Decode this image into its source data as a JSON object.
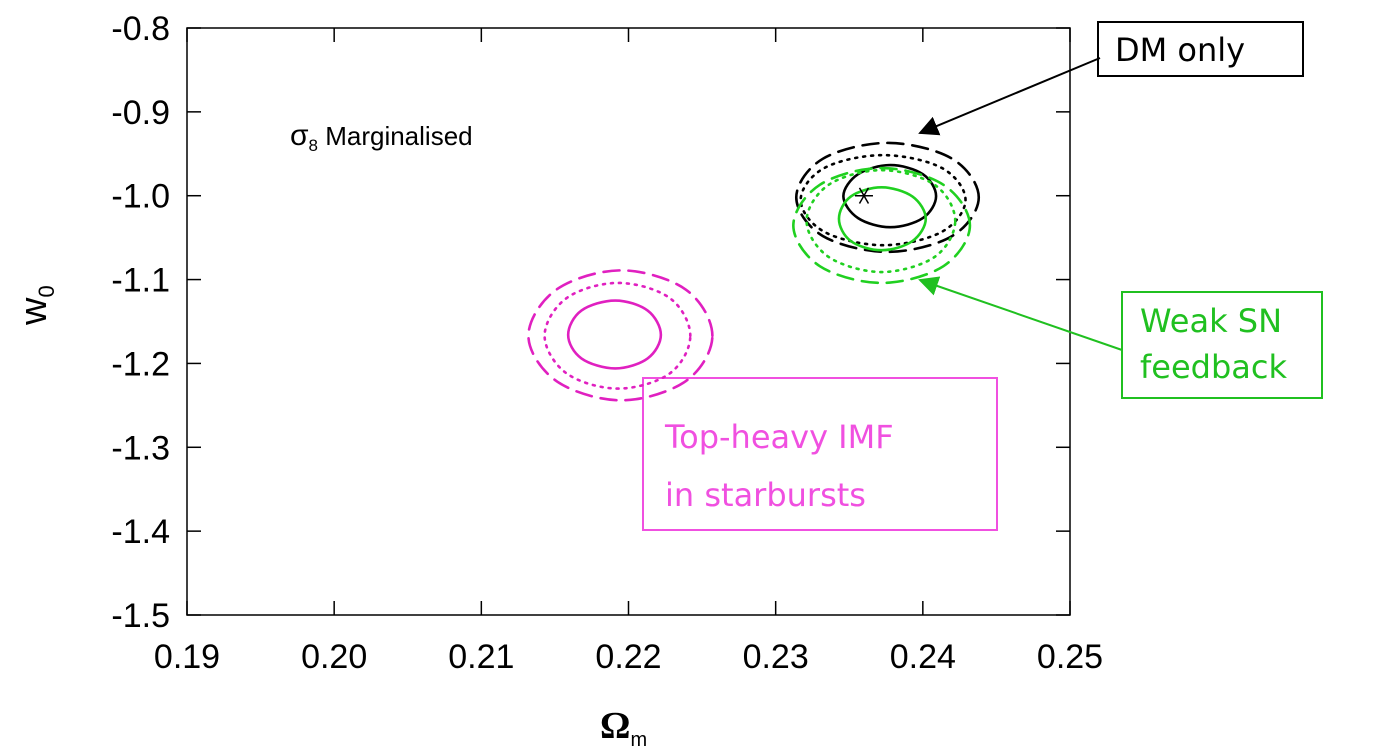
{
  "chart_data": {
    "type": "contour",
    "xlabel": "Ω",
    "xlabel_sub": "m",
    "ylabel": "w",
    "ylabel_sub": "0",
    "xlim": [
      0.19,
      0.25
    ],
    "xticks": [
      0.19,
      {
        "value": 0.2,
        "label": "0.20"
      },
      0.21,
      0.22,
      0.23,
      0.24,
      0.25
    ],
    "ylim": [
      -1.5,
      -0.8
    ],
    "yticks": [
      -0.8,
      -0.9,
      {
        "value": -1,
        "label": "-1.0"
      },
      -1.1,
      -1.2,
      -1.3,
      -1.4,
      -1.5
    ],
    "contours": [
      {
        "color": "#e020c0",
        "dash": "solid",
        "x": [
          0.2222,
          0.2213,
          0.2191,
          0.2168,
          0.2159,
          0.2168,
          0.2191,
          0.2213
        ],
        "y": [
          -1.166,
          -1.137,
          -1.125,
          -1.137,
          -1.166,
          -1.194,
          -1.206,
          -1.194
        ]
      },
      {
        "color": "#e020c0",
        "dash": "dotted",
        "x": [
          0.2242,
          0.2228,
          0.2193,
          0.2158,
          0.2143,
          0.2158,
          0.2193,
          0.2228
        ],
        "y": [
          -1.167,
          -1.122,
          -1.104,
          -1.122,
          -1.167,
          -1.212,
          -1.23,
          -1.212
        ]
      },
      {
        "color": "#e020c0",
        "dash": "dashed",
        "x": [
          0.2257,
          0.2239,
          0.2195,
          0.2151,
          0.2132,
          0.2151,
          0.2195,
          0.2239
        ],
        "y": [
          -1.167,
          -1.112,
          -1.089,
          -1.112,
          -1.167,
          -1.221,
          -1.244,
          -1.221
        ]
      },
      {
        "color": "#000000",
        "dash": "solid",
        "x": [
          0.2409,
          0.24,
          0.2378,
          0.2356,
          0.2346,
          0.2356,
          0.2378,
          0.24
        ],
        "y": [
          -1.0005,
          -0.9743,
          -0.9635,
          -0.9743,
          -1.0005,
          -1.0267,
          -1.0375,
          -1.0267
        ]
      },
      {
        "color": "#000000",
        "dash": "dotted",
        "x": [
          0.2429,
          0.2413,
          0.2373,
          0.2333,
          0.2317,
          0.2333,
          0.2373,
          0.2413
        ],
        "y": [
          -1.005,
          -0.967,
          -0.9516,
          -0.967,
          -1.005,
          -1.043,
          -1.059,
          -1.043
        ]
      },
      {
        "color": "#000000",
        "dash": "dashed",
        "x": [
          0.2438,
          0.242,
          0.2376,
          0.2332,
          0.2314,
          0.2332,
          0.2376,
          0.242
        ],
        "y": [
          -1.002,
          -0.956,
          -0.937,
          -0.956,
          -1.002,
          -1.048,
          -1.067,
          -1.048
        ]
      },
      {
        "color": "#20d020",
        "dash": "solid",
        "x": [
          0.2402,
          0.2393,
          0.2372,
          0.2351,
          0.2343,
          0.2351,
          0.2372,
          0.2393
        ],
        "y": [
          -1.0275,
          -1.001,
          -0.99,
          -1.001,
          -1.0275,
          -1.054,
          -1.065,
          -1.054
        ]
      },
      {
        "color": "#20d020",
        "dash": "dotted",
        "x": [
          0.2422,
          0.2408,
          0.2372,
          0.2336,
          0.2321,
          0.2336,
          0.2372,
          0.2408
        ],
        "y": [
          -1.03,
          -0.987,
          -0.9695,
          -0.987,
          -1.03,
          -1.073,
          -1.091,
          -1.073
        ]
      },
      {
        "color": "#20d020",
        "dash": "dashed",
        "x": [
          0.2432,
          0.2414,
          0.2372,
          0.233,
          0.2312,
          0.233,
          0.2372,
          0.2414
        ],
        "y": [
          -1.0355,
          -0.987,
          -0.967,
          -0.987,
          -1.0355,
          -1.084,
          -1.104,
          -1.084
        ]
      }
    ],
    "marker": {
      "x": 0.236,
      "y": -1.0,
      "color": "#000000"
    },
    "label": "σ",
    "label_sub": "8",
    "label_rest": " Marginalised",
    "annotations": [
      {
        "lines": [
          "DM only"
        ],
        "color": "#000000"
      },
      {
        "lines": [
          "Weak SN",
          "feedback"
        ],
        "color": "#20c020"
      },
      {
        "lines": [
          "Top-heavy IMF",
          "in starbursts"
        ],
        "color": "#f050e0"
      }
    ]
  }
}
